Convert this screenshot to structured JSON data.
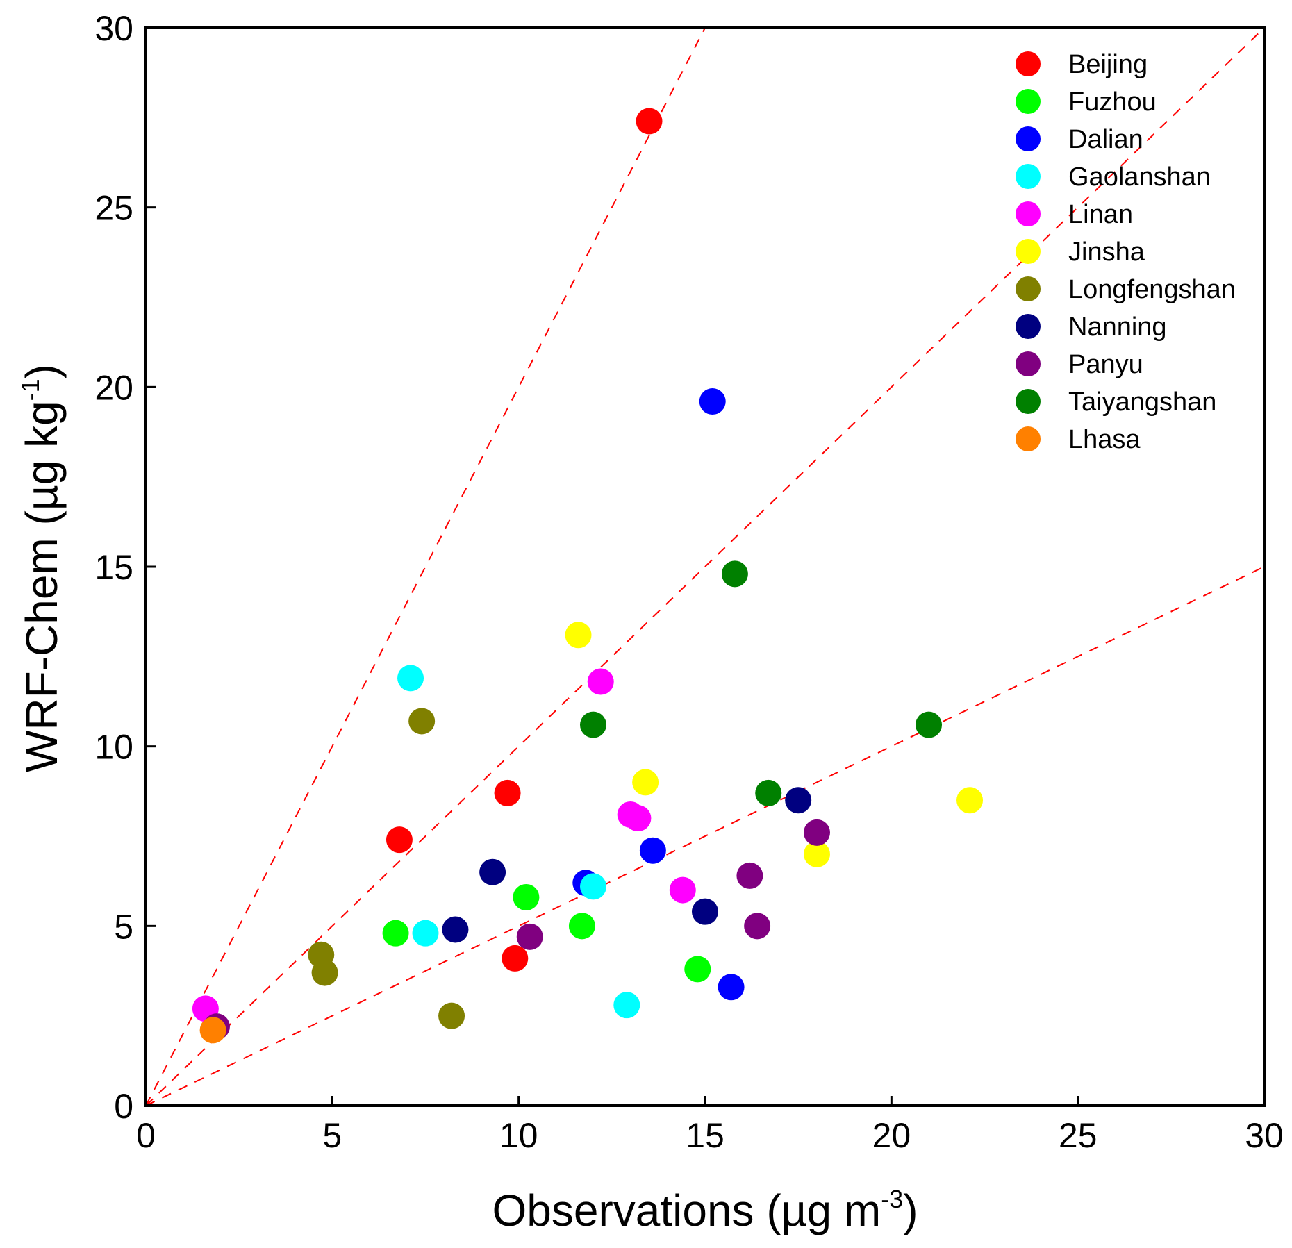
{
  "chart_data": {
    "type": "scatter",
    "title": "",
    "xlabel": {
      "text": "Observations (µg m",
      "sup": "-3",
      "close": ")"
    },
    "ylabel": {
      "text": "WRF-Chem (µg kg",
      "sup": "-1",
      "close": ")"
    },
    "xlim": [
      0,
      30
    ],
    "ylim": [
      0,
      30
    ],
    "xticks": [
      0,
      5,
      10,
      15,
      20,
      25,
      30
    ],
    "yticks": [
      0,
      5,
      10,
      15,
      20,
      25,
      30
    ],
    "grid": false,
    "legend_position": "top-right",
    "reference_lines": [
      {
        "label": "2:1",
        "slope": 2,
        "color": "#ff0000"
      },
      {
        "label": "1:1",
        "slope": 1,
        "color": "#ff0000"
      },
      {
        "label": "1:2",
        "slope": 0.5,
        "color": "#ff0000"
      }
    ],
    "series": [
      {
        "name": "Beijing",
        "color": "#ff0000",
        "points": [
          [
            13.5,
            27.4
          ],
          [
            9.7,
            8.7
          ],
          [
            6.8,
            7.4
          ],
          [
            9.9,
            4.1
          ]
        ]
      },
      {
        "name": "Fuzhou",
        "color": "#00ff00",
        "points": [
          [
            10.2,
            5.8
          ],
          [
            6.7,
            4.8
          ],
          [
            11.7,
            5.0
          ],
          [
            14.8,
            3.8
          ]
        ]
      },
      {
        "name": "Dalian",
        "color": "#0000ff",
        "points": [
          [
            15.2,
            19.6
          ],
          [
            11.8,
            6.2
          ],
          [
            13.6,
            7.1
          ],
          [
            15.7,
            3.3
          ]
        ]
      },
      {
        "name": "Gaolanshan",
        "color": "#00ffff",
        "points": [
          [
            7.1,
            11.9
          ],
          [
            7.5,
            4.8
          ],
          [
            12.0,
            6.1
          ],
          [
            12.9,
            2.8
          ]
        ]
      },
      {
        "name": "Linan",
        "color": "#ff00ff",
        "points": [
          [
            12.2,
            11.8
          ],
          [
            13.0,
            8.1
          ],
          [
            13.2,
            8.0
          ],
          [
            14.4,
            6.0
          ],
          [
            1.6,
            2.7
          ]
        ]
      },
      {
        "name": "Jinsha",
        "color": "#ffff00",
        "points": [
          [
            11.6,
            13.1
          ],
          [
            13.4,
            9.0
          ],
          [
            22.1,
            8.5
          ],
          [
            18.0,
            7.0
          ]
        ]
      },
      {
        "name": "Longfengshan",
        "color": "#808000",
        "points": [
          [
            7.4,
            10.7
          ],
          [
            4.7,
            4.2
          ],
          [
            4.8,
            3.7
          ],
          [
            8.2,
            2.5
          ]
        ]
      },
      {
        "name": "Nanning",
        "color": "#000080",
        "points": [
          [
            9.3,
            6.5
          ],
          [
            8.3,
            4.9
          ],
          [
            15.0,
            5.4
          ],
          [
            17.5,
            8.5
          ]
        ]
      },
      {
        "name": "Panyu",
        "color": "#800080",
        "points": [
          [
            10.3,
            4.7
          ],
          [
            16.2,
            6.4
          ],
          [
            16.4,
            5.0
          ],
          [
            18.0,
            7.6
          ],
          [
            1.9,
            2.2
          ]
        ]
      },
      {
        "name": "Taiyangshan",
        "color": "#008000",
        "points": [
          [
            12.0,
            10.6
          ],
          [
            15.8,
            14.8
          ],
          [
            16.7,
            8.7
          ],
          [
            21.0,
            10.6
          ]
        ]
      },
      {
        "name": "Lhasa",
        "color": "#ff8000",
        "points": [
          [
            1.8,
            2.1
          ]
        ]
      }
    ]
  }
}
